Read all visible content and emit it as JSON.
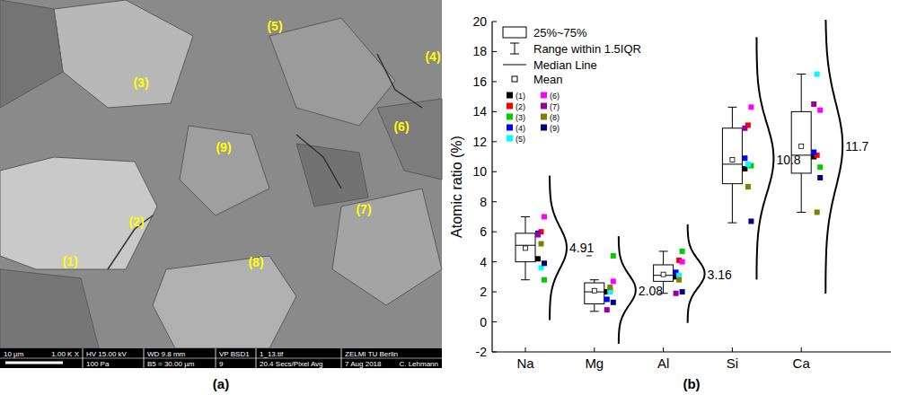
{
  "panel_letters": [
    "(a)",
    "(b)"
  ],
  "image_panel": {
    "point_labels": [
      "(1)",
      "(2)",
      "(3)",
      "(4)",
      "(5)",
      "(6)",
      "(7)",
      "(8)",
      "(9)"
    ],
    "info_bar": {
      "row1": [
        "10 µm",
        "1.00 K X",
        "HV 15.00 kV",
        "WD 9.8 mm",
        "VP BSD1",
        "1_13.tif",
        "ZELMI TU Berlin"
      ],
      "row2": [
        "100 Pa",
        "B5 = 30.00 µm",
        "9",
        "20.4 Secs/Pixel Avg",
        "7 Aug 2018",
        "C. Lehmann"
      ]
    }
  },
  "chart_data": {
    "type": "box",
    "ylabel": "Atomic ratio (%)",
    "categories": [
      "Na",
      "Mg",
      "Al",
      "Si",
      "Ca"
    ],
    "ylim": [
      -2,
      20
    ],
    "yticks": [
      -2,
      0,
      2,
      4,
      6,
      8,
      10,
      12,
      14,
      16,
      18,
      20
    ],
    "grid": false,
    "legend": "upper left",
    "data_labels": true,
    "legend_labels": {
      "box": "25%~75%",
      "whisker": "Range within 1.5IQR",
      "median": "Median Line",
      "mean": "Mean"
    },
    "boxes": [
      {
        "q1": 4.0,
        "median": 5.1,
        "q3": 5.9,
        "whisker_low": 2.8,
        "whisker_high": 7.0,
        "mean": 4.91,
        "outliers": []
      },
      {
        "q1": 1.2,
        "median": 2.0,
        "q3": 2.6,
        "whisker_low": 0.7,
        "whisker_high": 2.8,
        "mean": 2.08,
        "outliers": [
          4.4
        ]
      },
      {
        "q1": 2.7,
        "median": 3.1,
        "q3": 3.8,
        "whisker_low": 1.9,
        "whisker_high": 4.7,
        "mean": 3.16,
        "outliers": []
      },
      {
        "q1": 9.2,
        "median": 10.5,
        "q3": 12.9,
        "whisker_low": 6.6,
        "whisker_high": 14.3,
        "mean": 10.8,
        "outliers": []
      },
      {
        "q1": 9.9,
        "median": 11.1,
        "q3": 14.0,
        "whisker_low": 7.3,
        "whisker_high": 16.5,
        "mean": 11.7,
        "outliers": []
      }
    ],
    "series": [
      {
        "name": "(1)",
        "color": "#000000",
        "marker": "square",
        "values": [
          4.2,
          2.0,
          3.0,
          10.2,
          11.0
        ]
      },
      {
        "name": "(2)",
        "color": "#ff0000",
        "marker": "square",
        "values": [
          6.0,
          2.1,
          4.1,
          13.1,
          11.1
        ]
      },
      {
        "name": "(3)",
        "color": "#00cc00",
        "marker": "square",
        "values": [
          2.8,
          4.4,
          4.7,
          10.4,
          10.3
        ]
      },
      {
        "name": "(4)",
        "color": "#0000ff",
        "marker": "square",
        "values": [
          5.9,
          1.5,
          3.3,
          10.9,
          11.3
        ]
      },
      {
        "name": "(5)",
        "color": "#00ffff",
        "marker": "square",
        "values": [
          3.6,
          2.0,
          3.1,
          10.5,
          16.5
        ]
      },
      {
        "name": "(6)",
        "color": "#ff00ff",
        "marker": "square",
        "values": [
          7.0,
          2.7,
          4.0,
          14.3,
          14.1
        ]
      },
      {
        "name": "(7)",
        "color": "#990099",
        "marker": "square",
        "values": [
          5.8,
          0.8,
          1.9,
          12.9,
          14.5
        ]
      },
      {
        "name": "(8)",
        "color": "#808000",
        "marker": "square",
        "values": [
          5.2,
          2.3,
          2.8,
          9.0,
          7.3
        ]
      },
      {
        "name": "(9)",
        "color": "#000080",
        "marker": "square",
        "values": [
          3.9,
          1.3,
          2.0,
          6.7,
          9.6
        ]
      }
    ]
  }
}
